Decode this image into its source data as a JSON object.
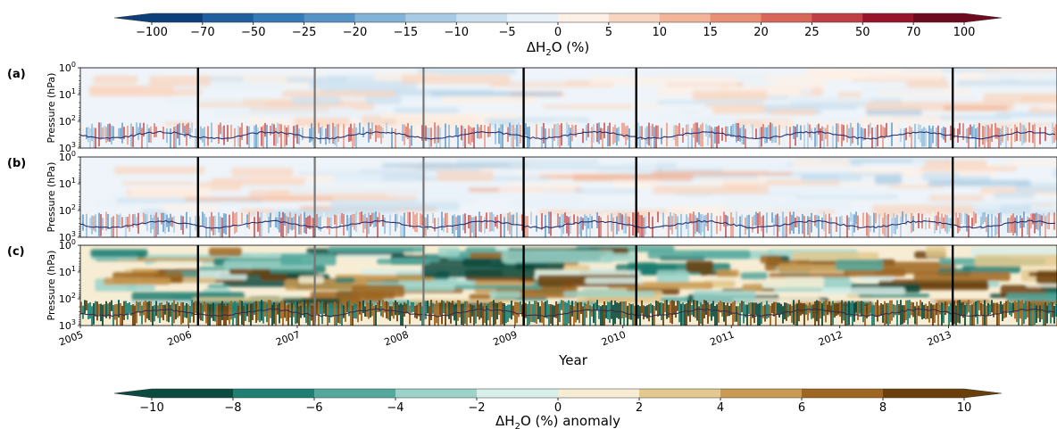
{
  "chart_data": {
    "type": "heatmap",
    "xlabel": "Year",
    "ylabel": "Pressure (hPa)",
    "y_scale": "log",
    "y_ticks": [
      {
        "value": 1,
        "base": "10",
        "exp": "0"
      },
      {
        "value": 10,
        "base": "10",
        "exp": "1"
      },
      {
        "value": 100,
        "base": "10",
        "exp": "2"
      },
      {
        "value": 1000,
        "base": "10",
        "exp": "3"
      }
    ],
    "ylim": [
      1000,
      1
    ],
    "x_ticks": [
      "2005",
      "2006",
      "2007",
      "2008",
      "2009",
      "2010",
      "2011",
      "2012",
      "2013"
    ],
    "xlim": [
      "2005-01-01",
      "2014-01-01"
    ],
    "panels": [
      {
        "label": "(a)",
        "colormap": "top"
      },
      {
        "label": "(b)",
        "colormap": "top"
      },
      {
        "label": "(c)",
        "colormap": "bottom"
      }
    ],
    "vertical_markers": [
      {
        "date": "2006-02-01",
        "style": "black"
      },
      {
        "date": "2007-03-01",
        "style": "gray"
      },
      {
        "date": "2008-03-01",
        "style": "gray"
      },
      {
        "date": "2009-02-01",
        "style": "black"
      },
      {
        "date": "2010-02-15",
        "style": "black"
      },
      {
        "date": "2013-01-15",
        "style": "black"
      }
    ],
    "colorbar_top": {
      "label_main": "ΔH",
      "label_sub": "2",
      "label_rest": "O (%)",
      "ticks": [
        "−100",
        "−70",
        "−50",
        "−25",
        "−20",
        "−15",
        "−10",
        "−5",
        "0",
        "5",
        "10",
        "15",
        "20",
        "25",
        "50",
        "70",
        "100"
      ],
      "colors": [
        "#0d3f7a",
        "#1f5f9f",
        "#3479b8",
        "#5593c6",
        "#82b3d6",
        "#a8cbe3",
        "#cbe0ef",
        "#e8f1f8",
        "#fdf0e6",
        "#f8d5c0",
        "#f2b59a",
        "#e98f76",
        "#d8675a",
        "#c03f44",
        "#99142a",
        "#6e0a1e"
      ],
      "extend": "both"
    },
    "colorbar_bottom": {
      "label_main": "ΔH",
      "label_sub": "2",
      "label_rest": "O (%) anomaly",
      "ticks": [
        "−10",
        "−8",
        "−6",
        "−4",
        "−2",
        "0",
        "2",
        "4",
        "6",
        "8",
        "10"
      ],
      "colors": [
        "#0b4a3e",
        "#1f7f72",
        "#54a89c",
        "#9cd3c9",
        "#d8eee9",
        "#f7edd4",
        "#e3c98f",
        "#c99a51",
        "#9e6621",
        "#6b3f0b"
      ],
      "extend": "both"
    },
    "legend": "none",
    "grid": false
  }
}
